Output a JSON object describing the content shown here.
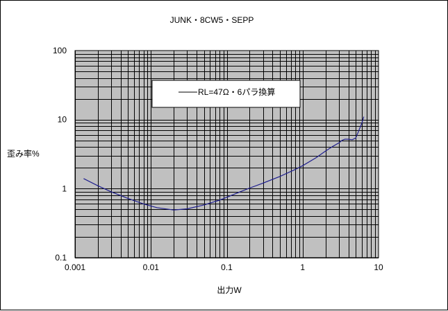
{
  "chart_data": {
    "type": "line",
    "title": "JUNK・8CW5・SEPP",
    "xlabel": "出力W",
    "ylabel": "歪み率%",
    "x_scale": "log",
    "y_scale": "log",
    "xlim": [
      0.001,
      10
    ],
    "ylim": [
      0.1,
      100
    ],
    "x_tick_labels": [
      "0.001",
      "0.01",
      "0.1",
      "1",
      "10"
    ],
    "y_tick_labels": [
      "0.1",
      "1",
      "10",
      "100"
    ],
    "grid": true,
    "legend_position": "upper-center",
    "colors": {
      "plot_background": "#c0c0c0",
      "grid": "#000000",
      "series": "#1f1f8f"
    },
    "series": [
      {
        "name": "RL=47Ω・6パラ換算",
        "x": [
          0.0013,
          0.002,
          0.003,
          0.005,
          0.008,
          0.012,
          0.02,
          0.03,
          0.05,
          0.08,
          0.1,
          0.15,
          0.2,
          0.3,
          0.5,
          0.8,
          1.0,
          1.5,
          2.0,
          2.5,
          3.0,
          3.3,
          3.6,
          4.0,
          4.5,
          5.0,
          5.3,
          5.6,
          6.0,
          6.4
        ],
        "y": [
          1.4,
          1.1,
          0.9,
          0.72,
          0.6,
          0.53,
          0.49,
          0.51,
          0.58,
          0.68,
          0.75,
          0.9,
          1.02,
          1.2,
          1.5,
          1.9,
          2.15,
          2.8,
          3.5,
          4.1,
          4.6,
          5.0,
          5.2,
          5.2,
          5.1,
          5.4,
          6.3,
          7.3,
          8.8,
          11.0
        ]
      }
    ]
  }
}
